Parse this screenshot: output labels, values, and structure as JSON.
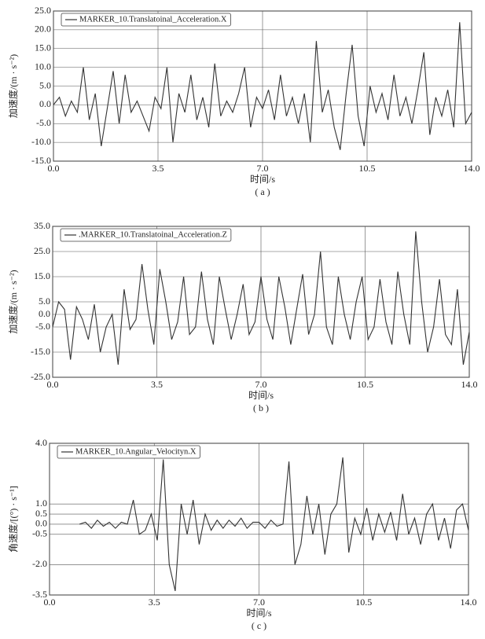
{
  "chart_data": [
    {
      "type": "line",
      "legend": "top-left",
      "grid": true,
      "xlabel": "时间/s",
      "ylabel": "加速度/(m · s⁻²)",
      "caption": "( a )",
      "xlim": [
        0,
        14
      ],
      "ylim": [
        -15,
        25
      ],
      "xticks": [
        {
          "value": 0,
          "label": "0.0"
        },
        {
          "value": 3.5,
          "label": "3.5"
        },
        {
          "value": 7,
          "label": "7.0"
        },
        {
          "value": 10.5,
          "label": "10.5"
        },
        {
          "value": 14,
          "label": "14.0"
        }
      ],
      "yticks": [
        {
          "value": 25,
          "label": "25.0"
        },
        {
          "value": 20,
          "label": "20.0"
        },
        {
          "value": 15,
          "label": "15.0"
        },
        {
          "value": 10,
          "label": "10.0"
        },
        {
          "value": 5,
          "label": "5.0"
        },
        {
          "value": 0,
          "label": "0.0"
        },
        {
          "value": -5,
          "label": "-5.0"
        },
        {
          "value": -10,
          "label": "-10.0"
        },
        {
          "value": -15,
          "label": "-15.0"
        }
      ],
      "x": [
        0,
        0.2,
        0.4,
        0.6,
        0.8,
        1,
        1.2,
        1.4,
        1.6,
        1.8,
        2,
        2.2,
        2.4,
        2.6,
        2.8,
        3,
        3.2,
        3.4,
        3.6,
        3.8,
        4,
        4.2,
        4.4,
        4.6,
        4.8,
        5,
        5.2,
        5.4,
        5.6,
        5.8,
        6,
        6.2,
        6.4,
        6.6,
        6.8,
        7,
        7.2,
        7.4,
        7.6,
        7.8,
        8,
        8.2,
        8.4,
        8.6,
        8.8,
        9,
        9.2,
        9.4,
        9.6,
        9.8,
        10,
        10.2,
        10.4,
        10.6,
        10.8,
        11,
        11.2,
        11.4,
        11.6,
        11.8,
        12,
        12.2,
        12.4,
        12.6,
        12.8,
        13,
        13.2,
        13.4,
        13.6,
        13.8,
        14
      ],
      "series": [
        {
          "name": "MARKER_10.Translatoinal_Acceleration.X",
          "color": "#333333",
          "values": [
            0,
            2,
            -3,
            1,
            -2,
            10,
            -4,
            3,
            -11,
            -1,
            9,
            -5,
            8,
            -2,
            1,
            -3,
            -7,
            2,
            -1,
            10,
            -10,
            3,
            -2,
            8,
            -4,
            2,
            -6,
            11,
            -3,
            1,
            -2,
            3,
            10,
            -6,
            2,
            -1,
            4,
            -4,
            8,
            -3,
            2,
            -5,
            3,
            -10,
            17,
            -2,
            4,
            -6,
            -12,
            3,
            16,
            -3,
            -11,
            5,
            -2,
            3,
            -4,
            8,
            -3,
            2,
            -5,
            4,
            14,
            -8,
            2,
            -3,
            4,
            -6,
            22,
            -5,
            -2
          ]
        }
      ]
    },
    {
      "type": "line",
      "legend": "top-left",
      "grid": true,
      "xlabel": "时间/s",
      "ylabel": "加速度/(m · s⁻²)",
      "caption": "( b )",
      "xlim": [
        0,
        14
      ],
      "ylim": [
        -25,
        35
      ],
      "xticks": [
        {
          "value": 0,
          "label": "0.0"
        },
        {
          "value": 3.5,
          "label": "3.5"
        },
        {
          "value": 7,
          "label": "7.0"
        },
        {
          "value": 10.5,
          "label": "10.5"
        },
        {
          "value": 14,
          "label": "14.0"
        }
      ],
      "yticks": [
        {
          "value": 35,
          "label": "35.0"
        },
        {
          "value": 25,
          "label": "25.0"
        },
        {
          "value": 15,
          "label": "15.0"
        },
        {
          "value": 5,
          "label": "5.0"
        },
        {
          "value": 0,
          "label": "0.0"
        },
        {
          "value": -5,
          "label": "-5.0"
        },
        {
          "value": -15,
          "label": "-15.0"
        },
        {
          "value": -25,
          "label": "-25.0"
        }
      ],
      "x": [
        0,
        0.2,
        0.4,
        0.6,
        0.8,
        1,
        1.2,
        1.4,
        1.6,
        1.8,
        2,
        2.2,
        2.4,
        2.6,
        2.8,
        3,
        3.2,
        3.4,
        3.6,
        3.8,
        4,
        4.2,
        4.4,
        4.6,
        4.8,
        5,
        5.2,
        5.4,
        5.6,
        5.8,
        6,
        6.2,
        6.4,
        6.6,
        6.8,
        7,
        7.2,
        7.4,
        7.6,
        7.8,
        8,
        8.2,
        8.4,
        8.6,
        8.8,
        9,
        9.2,
        9.4,
        9.6,
        9.8,
        10,
        10.2,
        10.4,
        10.6,
        10.8,
        11,
        11.2,
        11.4,
        11.6,
        11.8,
        12,
        12.2,
        12.4,
        12.6,
        12.8,
        13,
        13.2,
        13.4,
        13.6,
        13.8,
        14
      ],
      "series": [
        {
          "name": ".MARKER_10.Translatoinal_Acceleration.Z",
          "color": "#333333",
          "values": [
            -5,
            5,
            2,
            -18,
            3,
            -2,
            -10,
            4,
            -15,
            -5,
            0,
            -20,
            10,
            -6,
            -2,
            20,
            2,
            -12,
            18,
            5,
            -10,
            -3,
            15,
            -8,
            -5,
            17,
            -2,
            -12,
            15,
            2,
            -10,
            0,
            12,
            -8,
            -3,
            15,
            -2,
            -10,
            15,
            3,
            -12,
            2,
            16,
            -8,
            0,
            25,
            -5,
            -12,
            15,
            0,
            -10,
            5,
            15,
            -10,
            -5,
            14,
            -3,
            -12,
            17,
            0,
            -12,
            33,
            5,
            -15,
            -5,
            14,
            -8,
            -12,
            10,
            -20,
            -7
          ]
        }
      ]
    },
    {
      "type": "line",
      "legend": "top-left",
      "grid": true,
      "xlabel": "时间/s",
      "ylabel": "角速度/[(°) · s⁻¹]",
      "caption": "( c )",
      "xlim": [
        0,
        14
      ],
      "ylim": [
        -3.5,
        4
      ],
      "xticks": [
        {
          "value": 0,
          "label": "0.0"
        },
        {
          "value": 3.5,
          "label": "3.5"
        },
        {
          "value": 7,
          "label": "7.0"
        },
        {
          "value": 10.5,
          "label": "10.5"
        },
        {
          "value": 14,
          "label": "14.0"
        }
      ],
      "yticks": [
        {
          "value": 4,
          "label": "4.0"
        },
        {
          "value": 1,
          "label": "1.0"
        },
        {
          "value": 0.5,
          "label": "0.5"
        },
        {
          "value": 0,
          "label": "0.0"
        },
        {
          "value": -0.5,
          "label": "-0.5"
        },
        {
          "value": -2,
          "label": "-2.0"
        },
        {
          "value": -3.5,
          "label": "-3.5"
        }
      ],
      "x": [
        0,
        0.2,
        0.4,
        0.6,
        0.8,
        1,
        1.2,
        1.4,
        1.6,
        1.8,
        2,
        2.2,
        2.4,
        2.6,
        2.8,
        3,
        3.2,
        3.4,
        3.6,
        3.8,
        4,
        4.2,
        4.4,
        4.6,
        4.8,
        5,
        5.2,
        5.4,
        5.6,
        5.8,
        6,
        6.2,
        6.4,
        6.6,
        6.8,
        7,
        7.2,
        7.4,
        7.6,
        7.8,
        8,
        8.2,
        8.4,
        8.6,
        8.8,
        9,
        9.2,
        9.4,
        9.6,
        9.8,
        10,
        10.2,
        10.4,
        10.6,
        10.8,
        11,
        11.2,
        11.4,
        11.6,
        11.8,
        12,
        12.2,
        12.4,
        12.6,
        12.8,
        13,
        13.2,
        13.4,
        13.6,
        13.8,
        14
      ],
      "series": [
        {
          "name": "MARKER_10.Angular_Velocityn.X",
          "color": "#333333",
          "values": [
            null,
            null,
            null,
            null,
            null,
            0,
            0.1,
            -0.2,
            0.2,
            -0.1,
            0.1,
            -0.2,
            0.1,
            0,
            1.2,
            -0.5,
            -0.3,
            0.5,
            -0.8,
            3.2,
            -2,
            -3.3,
            1,
            -0.5,
            1.2,
            -1,
            0.5,
            -0.3,
            0.2,
            -0.2,
            0.2,
            -0.1,
            0.3,
            -0.2,
            0.1,
            0.1,
            -0.2,
            0.2,
            -0.1,
            0,
            3.1,
            -2,
            -1,
            1.4,
            -0.5,
            1,
            -1.5,
            0.5,
            1,
            3.3,
            -1.4,
            0.3,
            -0.5,
            0.8,
            -0.8,
            0.5,
            -0.4,
            0.6,
            -0.8,
            1.5,
            -0.5,
            0.3,
            -1,
            0.5,
            1,
            -0.8,
            0.3,
            -1.2,
            0.7,
            1,
            -0.3
          ]
        }
      ]
    }
  ]
}
